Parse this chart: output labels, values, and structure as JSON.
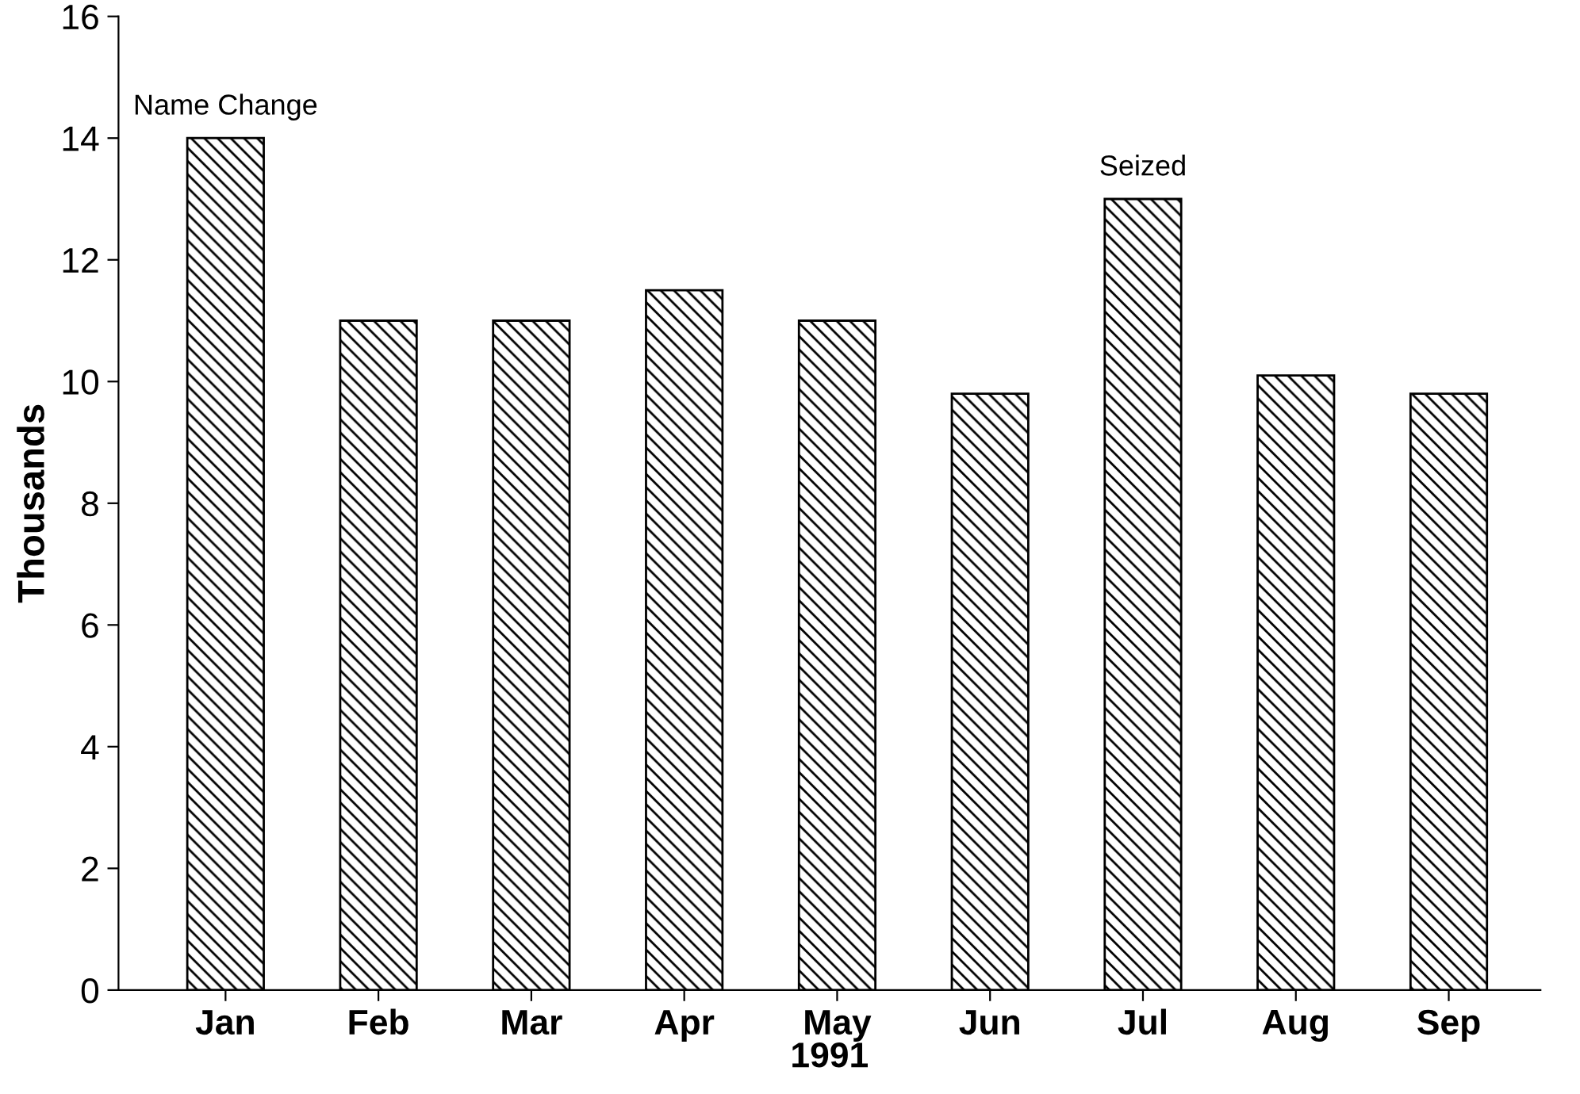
{
  "chart_data": {
    "type": "bar",
    "ylabel": "Thousands",
    "xlabel": "1991",
    "categories": [
      "Jan",
      "Feb",
      "Mar",
      "Apr",
      "May",
      "Jun",
      "Jul",
      "Aug",
      "Sep"
    ],
    "values": [
      14,
      11,
      11,
      11.5,
      11,
      9.8,
      13,
      10.1,
      9.8
    ],
    "color": "#000000",
    "ylim": [
      0,
      16
    ],
    "yticks": [
      0,
      2,
      4,
      6,
      8,
      10,
      12,
      14,
      16
    ],
    "annotations": [
      {
        "text": "Name Change",
        "x": "Jan",
        "y": 14
      },
      {
        "text": "Seized",
        "x": "Jul",
        "y": 13
      }
    ]
  }
}
